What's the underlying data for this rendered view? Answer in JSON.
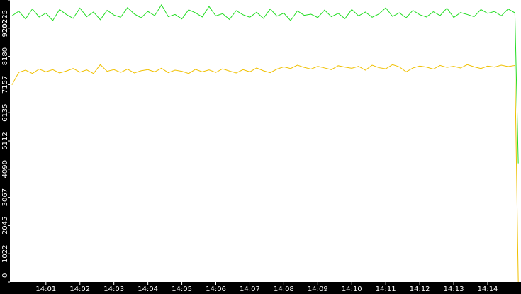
{
  "chart_data": {
    "type": "line",
    "x": [
      840,
      840.2,
      840.4,
      840.6,
      840.8,
      841,
      841.2,
      841.4,
      841.6,
      841.8,
      842,
      842.2,
      842.4,
      842.6,
      842.8,
      843,
      843.2,
      843.4,
      843.6,
      843.8,
      844,
      844.2,
      844.4,
      844.6,
      844.8,
      845,
      845.2,
      845.4,
      845.6,
      845.8,
      846,
      846.2,
      846.4,
      846.6,
      846.8,
      847,
      847.2,
      847.4,
      847.6,
      847.8,
      848,
      848.2,
      848.4,
      848.6,
      848.8,
      849,
      849.2,
      849.4,
      849.6,
      849.8,
      850,
      850.2,
      850.4,
      850.6,
      850.8,
      851,
      851.2,
      851.4,
      851.6,
      851.8,
      852,
      852.2,
      852.4,
      852.6,
      852.8,
      853,
      853.2,
      853.4,
      853.6,
      853.8,
      854,
      854.2,
      854.4,
      854.6,
      854.8,
      854.9
    ],
    "series": [
      {
        "color": "#22dd22",
        "values": [
          9650,
          9820,
          9540,
          9900,
          9610,
          9750,
          9480,
          9880,
          9700,
          9560,
          9930,
          9620,
          9790,
          9510,
          9850,
          9680,
          9600,
          9950,
          9720,
          9580,
          9810,
          9660,
          10050,
          9620,
          9700,
          9540,
          9870,
          9760,
          9610,
          9990,
          9650,
          9730,
          9520,
          9840,
          9690,
          9600,
          9780,
          9560,
          9900,
          9640,
          9750,
          9480,
          9830,
          9670,
          9710,
          9590,
          9860,
          9620,
          9740,
          9550,
          9880,
          9650,
          9790,
          9600,
          9720,
          9940,
          9630,
          9760,
          9580,
          9850,
          9690,
          9610,
          9800,
          9660,
          9930,
          9590,
          9770,
          9700,
          9620,
          9880,
          9740,
          9810,
          9650,
          9900,
          9760,
          4300
        ]
      },
      {
        "color": "#f0c000",
        "values": [
          7150,
          7600,
          7680,
          7560,
          7720,
          7620,
          7700,
          7580,
          7650,
          7740,
          7610,
          7690,
          7560,
          7880,
          7640,
          7700,
          7600,
          7720,
          7580,
          7660,
          7700,
          7620,
          7750,
          7590,
          7680,
          7640,
          7560,
          7710,
          7620,
          7690,
          7600,
          7730,
          7650,
          7580,
          7700,
          7620,
          7760,
          7660,
          7590,
          7720,
          7800,
          7740,
          7860,
          7780,
          7720,
          7820,
          7760,
          7700,
          7840,
          7790,
          7750,
          7820,
          7680,
          7860,
          7770,
          7730,
          7880,
          7800,
          7620,
          7760,
          7830,
          7790,
          7720,
          7850,
          7780,
          7820,
          7760,
          7880,
          7800,
          7740,
          7830,
          7790,
          7860,
          7810,
          7850,
          0
        ]
      }
    ],
    "xlim": [
      839.94,
      854.98
    ],
    "xticks": [
      {
        "value": 841,
        "label": "14:01"
      },
      {
        "value": 842,
        "label": "14:02"
      },
      {
        "value": 843,
        "label": "14:03"
      },
      {
        "value": 844,
        "label": "14:04"
      },
      {
        "value": 845,
        "label": "14:05"
      },
      {
        "value": 846,
        "label": "14:06"
      },
      {
        "value": 847,
        "label": "14:07"
      },
      {
        "value": 848,
        "label": "14:08"
      },
      {
        "value": 849,
        "label": "14:09"
      },
      {
        "value": 850,
        "label": "14:10"
      },
      {
        "value": 851,
        "label": "14:11"
      },
      {
        "value": 852,
        "label": "14:12"
      },
      {
        "value": 853,
        "label": "14:13"
      },
      {
        "value": 854,
        "label": "14:14"
      }
    ],
    "ylim": [
      0,
      10225
    ],
    "yticks": [
      0,
      1022,
      2045,
      3067,
      4090,
      5112,
      6135,
      7157,
      8180,
      9202,
      10225
    ]
  }
}
